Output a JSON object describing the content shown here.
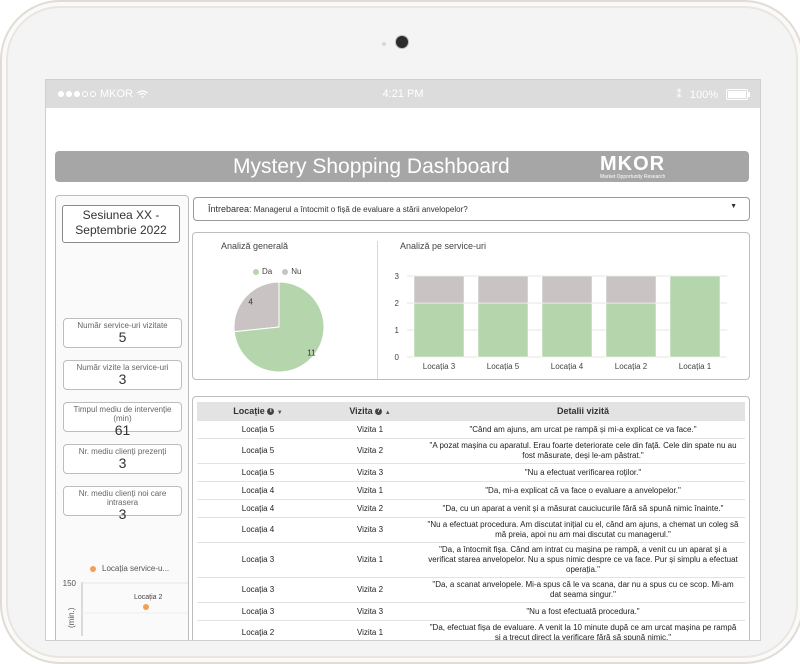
{
  "status_bar": {
    "carrier": "MKOR",
    "time": "4:21 PM",
    "battery": "100%"
  },
  "header": {
    "title": "Mystery Shopping Dashboard",
    "logo_text": "MKOR",
    "logo_subtext": "Market Opportunity Research"
  },
  "sidebar": {
    "session_line1": "Sesiunea XX -",
    "session_line2": "Septembrie 2022",
    "kpis": [
      {
        "label": "Număr service-uri vizitate",
        "value": "5"
      },
      {
        "label": "Număr vizite la service-uri",
        "value": "3"
      },
      {
        "label": "Timpul mediu de intervenție (min)",
        "value": "61"
      },
      {
        "label": "Nr. mediu clienți prezenți",
        "value": "3"
      },
      {
        "label": "Nr. mediu clienți noi care intrasera",
        "value": "3"
      }
    ],
    "mini_chart": {
      "legend": "Locația service-u...",
      "ytick": "150",
      "ylabel": "(min.)",
      "point_label": "Locația 2",
      "point_color": "#f2a055"
    }
  },
  "filter": {
    "label": "Întrebarea:",
    "value": "Managerul a întocmit o fișă de evaluare a stării anvelopelor?"
  },
  "colors": {
    "da": "#b5d6ac",
    "nu": "#c9c3c3",
    "accent": "#f2a055"
  },
  "chart_data": [
    {
      "type": "pie",
      "title": "Analiză generală",
      "categories": [
        "Da",
        "Nu"
      ],
      "values": [
        11,
        4
      ],
      "legend": "top"
    },
    {
      "type": "bar",
      "title": "Analiză pe service-uri",
      "categories": [
        "Locația 3",
        "Locația 5",
        "Locația 4",
        "Locația 2",
        "Locația 1"
      ],
      "series": [
        {
          "name": "Da",
          "values": [
            2,
            2,
            2,
            2,
            3
          ]
        },
        {
          "name": "Nu",
          "values": [
            1,
            1,
            1,
            1,
            0
          ]
        }
      ],
      "stacked": true,
      "ylim": [
        0,
        3
      ],
      "yticks": [
        "0",
        "1",
        "2",
        "3"
      ],
      "grid": true
    }
  ],
  "table": {
    "headers": [
      "Locație",
      "Vizita",
      "Detalii vizită"
    ],
    "rows": [
      [
        "Locația 5",
        "Vizita 1",
        "\"Când am ajuns, am urcat pe rampă și mi-a explicat ce va face.\""
      ],
      [
        "Locația 5",
        "Vizita 2",
        "\"A pozat mașina cu aparatul. Erau foarte deteriorate cele din față. Cele din spate nu au fost măsurate, deși le-am păstrat.\""
      ],
      [
        "Locația 5",
        "Vizita 3",
        "\"Nu a efectuat verificarea roților.\""
      ],
      [
        "Locația 4",
        "Vizita 1",
        "\"Da, mi-a explicat că va face o evaluare a anvelopelor.\""
      ],
      [
        "Locația 4",
        "Vizita 2",
        "\"Da, cu un aparat a venit și a măsurat cauciucurile fără să spună nimic înainte.\""
      ],
      [
        "Locația 4",
        "Vizita 3",
        "\"Nu a efectuat procedura. Am discutat inițial cu el, când am ajuns, a chemat un coleg să mă preia, apoi nu am mai discutat cu managerul.\""
      ],
      [
        "Locația 3",
        "Vizita 1",
        "\"Da, a întocmit fișa. Când am intrat cu mașina pe rampă, a venit cu un aparat și a verificat starea anvelopelor. Nu a spus nimic despre ce va face. Pur și simplu a efectuat operația.\""
      ],
      [
        "Locația 3",
        "Vizita 2",
        "\"Da, a scanat anvelopele. Mi-a spus că le va scana, dar nu a spus cu ce scop. Mi-am dat seama singur.\""
      ],
      [
        "Locația 3",
        "Vizita 3",
        "\"Nu a fost efectuată procedura.\""
      ],
      [
        "Locația 2",
        "Vizita 1",
        "\"Da, efectuat fișa de evaluare. A venit la 10 minute după ce am urcat mașina pe rampă și a trecut direct la verificare fără să spună nimic.\""
      ]
    ]
  }
}
